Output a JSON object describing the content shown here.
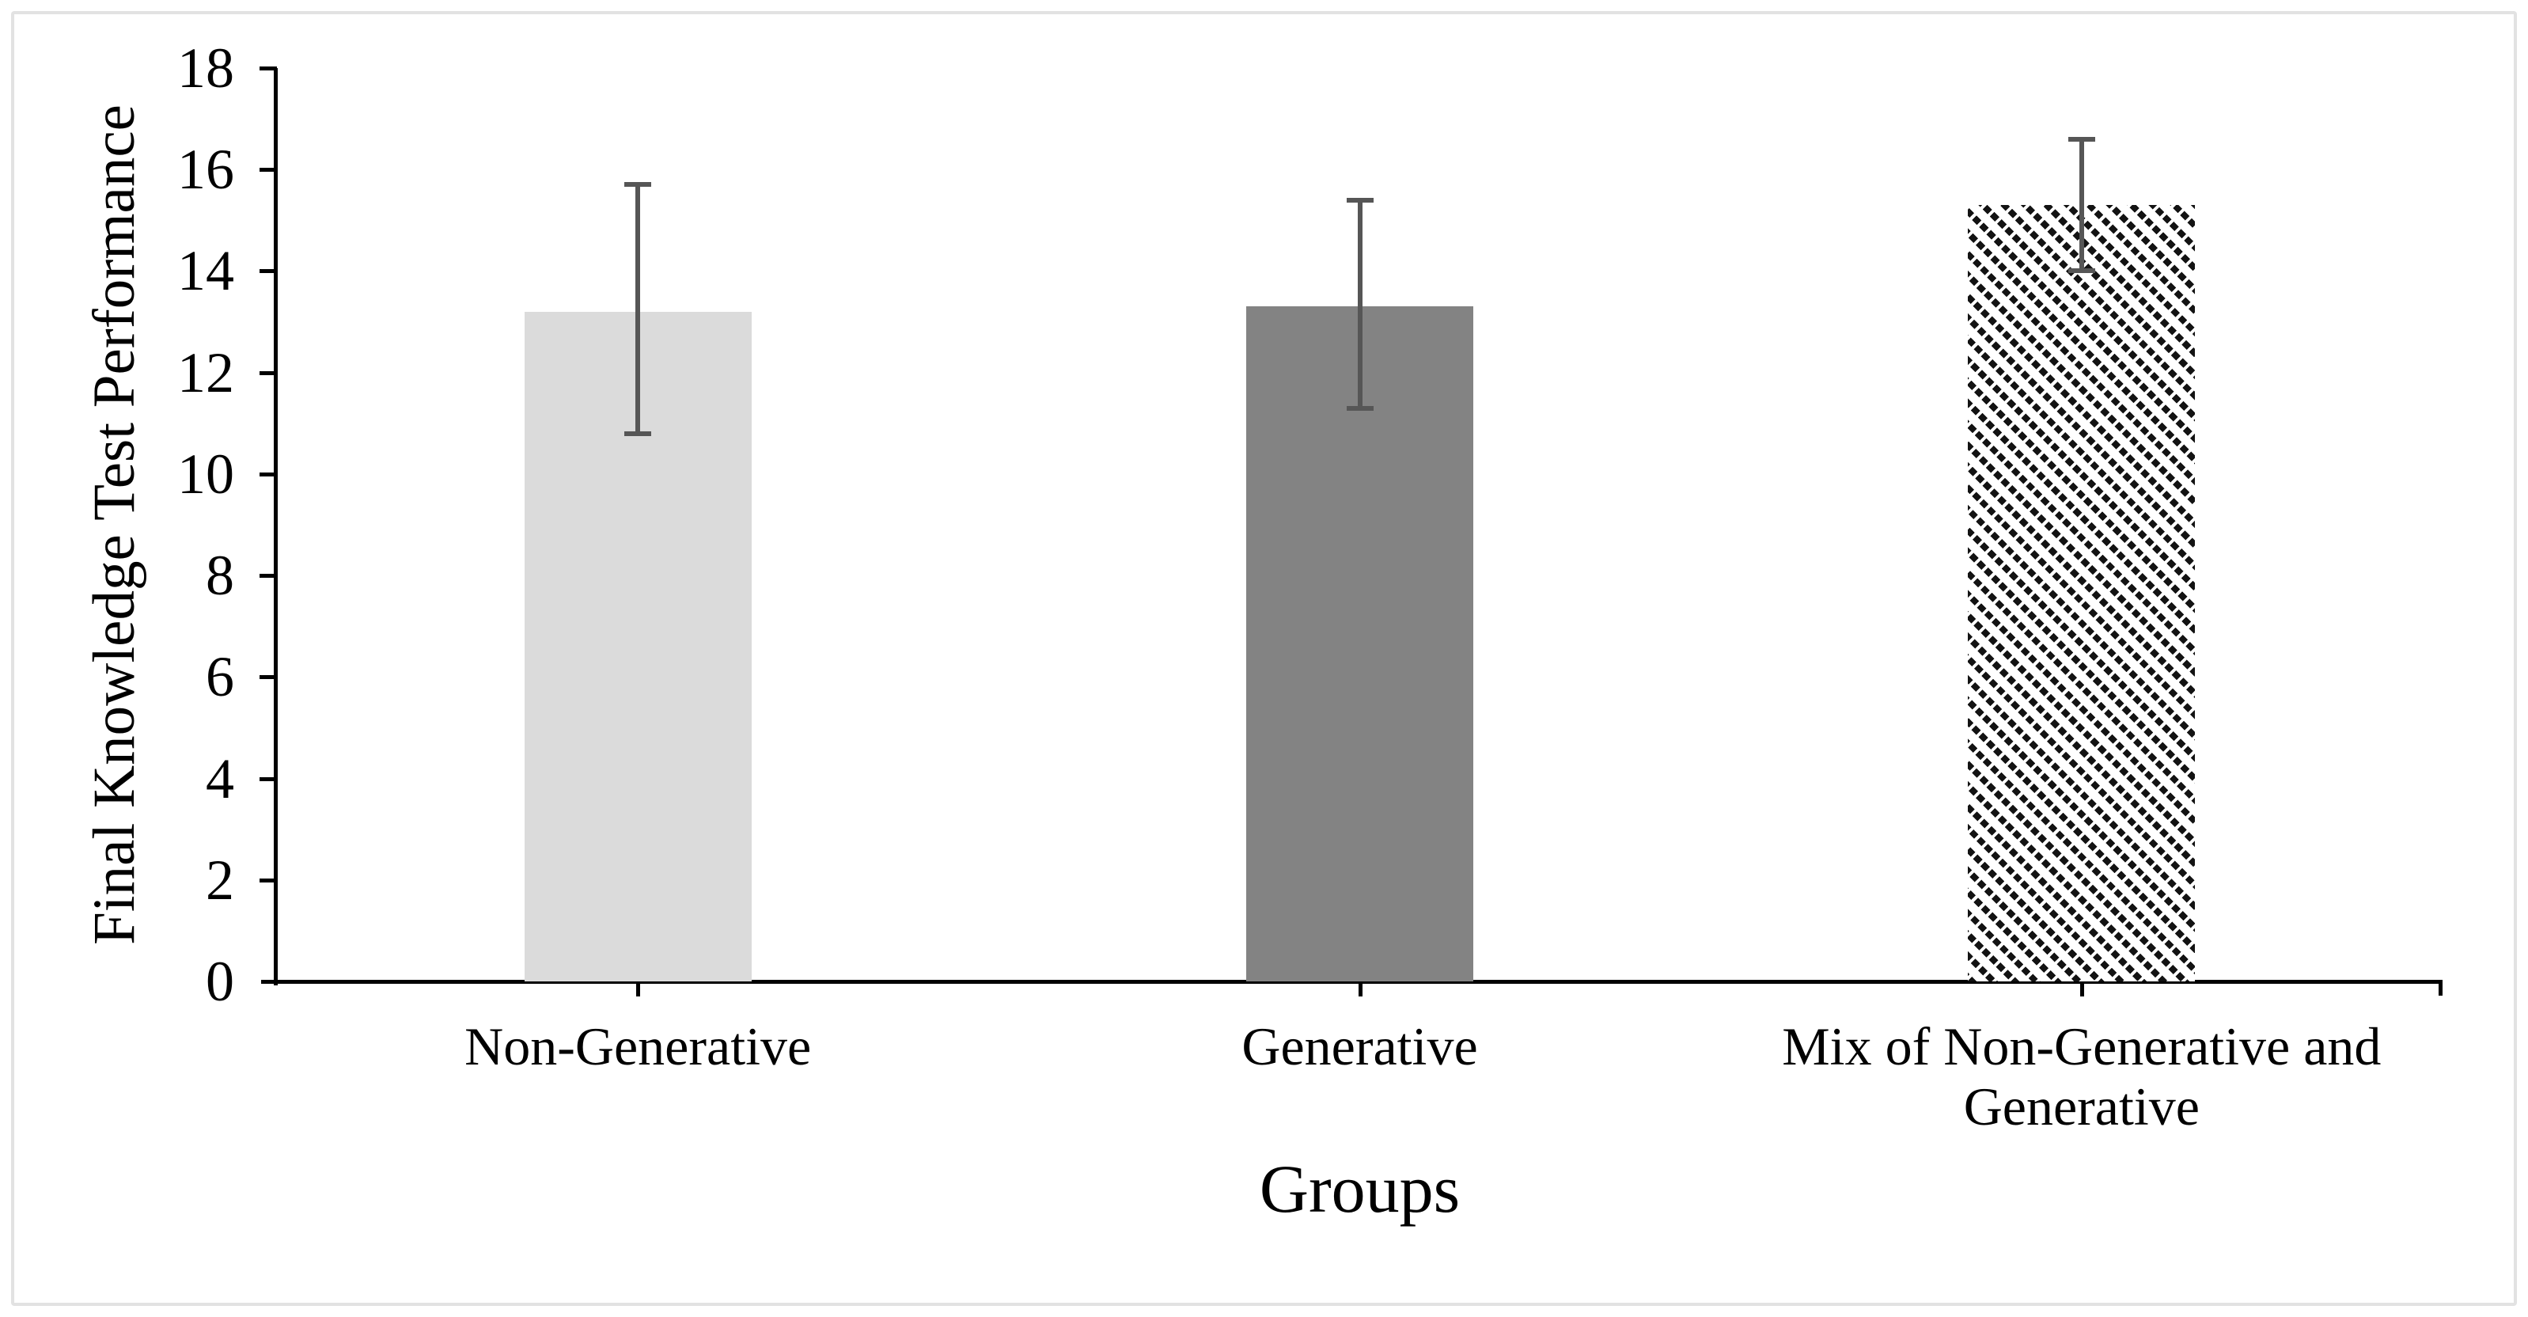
{
  "figure": {
    "background": "#ffffff",
    "border_color": "#e2e2e2"
  },
  "chart_data": {
    "type": "bar",
    "title": "",
    "xlabel": "Groups",
    "ylabel": "Final Knowledge Test Performance",
    "categories": [
      "Non-Generative",
      "Generative",
      "Mix of Non-Generative and Generative"
    ],
    "values": [
      13.2,
      13.3,
      15.3
    ],
    "error_low": [
      10.8,
      11.3,
      14.0
    ],
    "error_high": [
      15.7,
      15.4,
      16.6
    ],
    "ylim": [
      0,
      18
    ],
    "yticks": [
      0,
      2,
      4,
      6,
      8,
      10,
      12,
      14,
      16,
      18
    ],
    "grid": false,
    "legend": false,
    "bar_styles": [
      {
        "fill": "solid",
        "color": "#dbdbdb",
        "description": "light-gray"
      },
      {
        "fill": "solid",
        "color": "#838383",
        "description": "dark-gray"
      },
      {
        "fill": "diagonal-hatch",
        "color": "#131313",
        "description": "black-dotted-backslash-hatch"
      }
    ],
    "error_bar_color": "#565656",
    "axis_color": "#000000"
  }
}
